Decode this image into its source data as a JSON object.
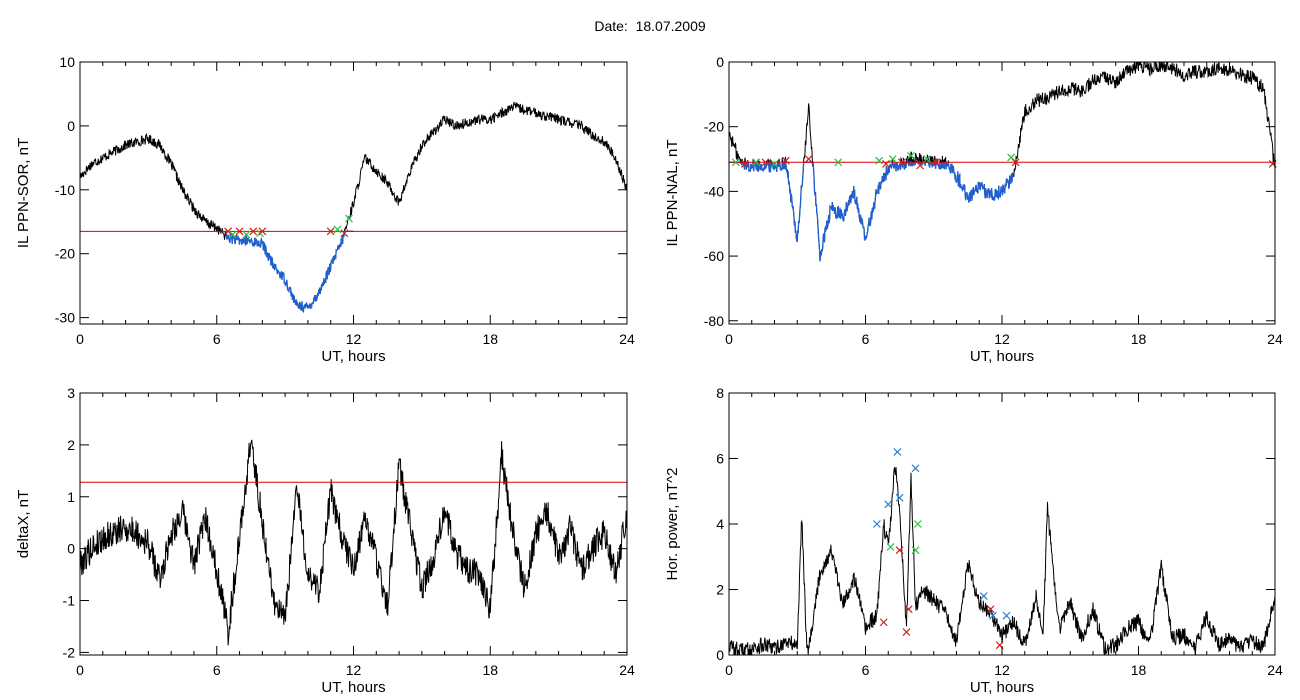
{
  "header": {
    "date_label": "Date:",
    "date_value": "18.07.2009"
  },
  "colors": {
    "axis": "#000000",
    "trace": "#000000",
    "selected_trace": "#1f5fcf",
    "threshold": "#dd0000",
    "marker_green": "#22c33a",
    "marker_red": "#d11b1b",
    "marker_blue": "#2e7fd6"
  },
  "chart_data": [
    {
      "id": "sor",
      "type": "line",
      "xlabel": "UT, hours",
      "ylabel": "IL PPN-SOR, nT",
      "xlim": [
        0,
        24
      ],
      "ylim": [
        -31,
        10
      ],
      "xticks": [
        0,
        6,
        12,
        18,
        24
      ],
      "yticks": [
        -30,
        -20,
        -10,
        0,
        10
      ],
      "threshold": -16.5,
      "x": [
        0,
        0.5,
        1,
        1.5,
        2,
        2.5,
        3,
        3.5,
        4,
        4.5,
        5,
        5.5,
        6,
        6.5,
        7,
        7.5,
        8,
        8.5,
        9,
        9.5,
        10,
        10.5,
        11,
        11.5,
        12,
        12.5,
        13,
        13.5,
        14,
        14.5,
        15,
        15.5,
        16,
        16.5,
        17,
        17.5,
        18,
        18.5,
        19,
        19.5,
        20,
        20.5,
        21,
        21.5,
        22,
        22.5,
        23,
        23.5,
        24
      ],
      "y": [
        -8,
        -6,
        -5,
        -4,
        -3,
        -2.5,
        -2,
        -3,
        -6,
        -10,
        -13,
        -15,
        -16,
        -17.5,
        -18,
        -18,
        -18.5,
        -22,
        -24,
        -28,
        -28.5,
        -26,
        -22,
        -18,
        -12,
        -5,
        -7,
        -9,
        -12,
        -7,
        -3,
        -1,
        1,
        0,
        0.5,
        1,
        1,
        2,
        3,
        2.5,
        2,
        1.5,
        1,
        0.5,
        0,
        -1.5,
        -2.5,
        -5,
        -10
      ],
      "selected_x_range": [
        6.4,
        12
      ],
      "markers": [
        {
          "x": 6.5,
          "y": -16.5,
          "color": "red"
        },
        {
          "x": 6.7,
          "y": -17,
          "color": "green"
        },
        {
          "x": 7.0,
          "y": -16.5,
          "color": "red"
        },
        {
          "x": 7.3,
          "y": -17,
          "color": "green"
        },
        {
          "x": 7.6,
          "y": -16.5,
          "color": "red"
        },
        {
          "x": 7.9,
          "y": -16.8,
          "color": "green"
        },
        {
          "x": 8.0,
          "y": -16.5,
          "color": "red"
        },
        {
          "x": 11.0,
          "y": -16.5,
          "color": "red"
        },
        {
          "x": 11.3,
          "y": -16.2,
          "color": "green"
        },
        {
          "x": 11.6,
          "y": -16.8,
          "color": "red"
        },
        {
          "x": 11.8,
          "y": -14.5,
          "color": "green"
        }
      ]
    },
    {
      "id": "nal",
      "type": "line",
      "xlabel": "UT, hours",
      "ylabel": "IL PPN-NAL, nT",
      "xlim": [
        0,
        24
      ],
      "ylim": [
        -81,
        0
      ],
      "xticks": [
        0,
        6,
        12,
        18,
        24
      ],
      "yticks": [
        -80,
        -60,
        -40,
        -20,
        0
      ],
      "threshold": -31,
      "x": [
        0,
        0.5,
        1,
        1.5,
        2,
        2.5,
        3,
        3.5,
        4,
        4.5,
        5,
        5.5,
        6,
        6.5,
        7,
        7.5,
        8,
        8.5,
        9,
        9.5,
        10,
        10.5,
        11,
        11.5,
        12,
        12.5,
        13,
        13.5,
        14,
        14.5,
        15,
        15.5,
        16,
        16.5,
        17,
        17.5,
        18,
        18.5,
        19,
        19.5,
        20,
        20.5,
        21,
        21.5,
        22,
        22.5,
        23,
        23.5,
        24
      ],
      "y": [
        -22,
        -31,
        -32,
        -32,
        -32,
        -31,
        -55,
        -14,
        -60,
        -45,
        -48,
        -40,
        -55,
        -40,
        -33,
        -32,
        -30,
        -30,
        -31,
        -31,
        -35,
        -42,
        -39,
        -41,
        -40,
        -35,
        -15,
        -12,
        -11,
        -9,
        -8,
        -9,
        -6,
        -5,
        -6,
        -3,
        -1,
        -2,
        -1,
        -2,
        -4,
        -3,
        -3,
        -2,
        -3,
        -4,
        -5,
        -8,
        -33
      ],
      "selected_x_range": [
        0,
        12.5
      ],
      "markers": [
        {
          "x": 0.3,
          "y": -31,
          "color": "green"
        },
        {
          "x": 0.7,
          "y": -31.5,
          "color": "red"
        },
        {
          "x": 1.2,
          "y": -31,
          "color": "green"
        },
        {
          "x": 1.6,
          "y": -31,
          "color": "red"
        },
        {
          "x": 2.0,
          "y": -31.5,
          "color": "green"
        },
        {
          "x": 2.5,
          "y": -30.5,
          "color": "red"
        },
        {
          "x": 3.5,
          "y": -30,
          "color": "red"
        },
        {
          "x": 4.8,
          "y": -31,
          "color": "green"
        },
        {
          "x": 6.6,
          "y": -30.5,
          "color": "green"
        },
        {
          "x": 6.9,
          "y": -31.5,
          "color": "red"
        },
        {
          "x": 7.2,
          "y": -30,
          "color": "green"
        },
        {
          "x": 7.6,
          "y": -31,
          "color": "red"
        },
        {
          "x": 8.0,
          "y": -29,
          "color": "green"
        },
        {
          "x": 8.4,
          "y": -32,
          "color": "red"
        },
        {
          "x": 8.7,
          "y": -30,
          "color": "green"
        },
        {
          "x": 9.1,
          "y": -31,
          "color": "red"
        },
        {
          "x": 12.4,
          "y": -29.5,
          "color": "green"
        },
        {
          "x": 12.6,
          "y": -31,
          "color": "red"
        },
        {
          "x": 23.9,
          "y": -31.5,
          "color": "red"
        }
      ]
    },
    {
      "id": "deltax",
      "type": "line",
      "xlabel": "UT, hours",
      "ylabel": "deltaX, nT",
      "xlim": [
        0,
        24
      ],
      "ylim": [
        -2.05,
        3
      ],
      "xticks": [
        0,
        6,
        12,
        18,
        24
      ],
      "yticks": [
        -2,
        -1,
        0,
        1,
        2,
        3
      ],
      "threshold": 1.28,
      "x": [
        0,
        0.5,
        1,
        1.5,
        2,
        2.5,
        3,
        3.5,
        4,
        4.5,
        5,
        5.5,
        6,
        6.5,
        7,
        7.5,
        8,
        8.5,
        9,
        9.5,
        10,
        10.5,
        11,
        11.5,
        12,
        12.5,
        13,
        13.5,
        14,
        14.5,
        15,
        15.5,
        16,
        16.5,
        17,
        17.5,
        18,
        18.5,
        19,
        19.5,
        20,
        20.5,
        21,
        21.5,
        22,
        22.5,
        23,
        23.5,
        24
      ],
      "y": [
        -0.3,
        0,
        0.2,
        0.3,
        0.4,
        0.3,
        0.1,
        -0.6,
        0.3,
        0.7,
        -0.3,
        0.6,
        -0.4,
        -1.6,
        0.2,
        2.1,
        0.5,
        -1,
        -1.4,
        1.2,
        -0.5,
        -0.8,
        1.1,
        0.2,
        -0.4,
        0.6,
        -0.2,
        -1.1,
        1.6,
        0.4,
        -0.8,
        -0.2,
        0.8,
        -0.1,
        -0.4,
        -0.5,
        -1.2,
        1.8,
        0.3,
        -0.8,
        0.3,
        0.7,
        -0.2,
        0.4,
        -0.4,
        0,
        0.3,
        -0.5,
        0.7
      ],
      "markers": []
    },
    {
      "id": "power",
      "type": "line",
      "xlabel": "UT, hours",
      "ylabel": "Hor. power, nT^2",
      "xlim": [
        0,
        24
      ],
      "ylim": [
        0,
        8
      ],
      "xticks": [
        0,
        6,
        12,
        18,
        24
      ],
      "yticks": [
        0,
        2,
        4,
        6,
        8
      ],
      "x": [
        0,
        0.5,
        1,
        1.5,
        2,
        2.5,
        3,
        3.2,
        3.4,
        3.5,
        4,
        4.5,
        5,
        5.5,
        6,
        6.5,
        6.8,
        7,
        7.3,
        7.5,
        7.8,
        8,
        8.2,
        8.5,
        9,
        9.5,
        10,
        10.5,
        11,
        11.5,
        12,
        12.5,
        13,
        13.5,
        13.8,
        14,
        14.5,
        15,
        15.5,
        16,
        16.5,
        17,
        17.5,
        18,
        18.5,
        19,
        19.5,
        20,
        20.5,
        21,
        21.5,
        22,
        22.5,
        23,
        23.5,
        24
      ],
      "y": [
        0.3,
        0.1,
        0.2,
        0.3,
        0.2,
        0.4,
        0.3,
        4.3,
        0.5,
        0.2,
        2.5,
        3.2,
        1.5,
        2.4,
        0.8,
        1.2,
        4.0,
        3.3,
        5.8,
        4.5,
        0.8,
        5.4,
        1.5,
        2.0,
        1.7,
        1.3,
        0.4,
        2.8,
        1.6,
        1.3,
        0.6,
        1.0,
        0.3,
        1.8,
        0.5,
        4.5,
        0.8,
        1.6,
        0.5,
        1.4,
        0.2,
        0.3,
        0.8,
        1.0,
        0.3,
        2.7,
        0.5,
        0.6,
        0.2,
        1.2,
        0.3,
        0.5,
        0.2,
        0.4,
        0.3,
        1.8
      ],
      "markers": [
        {
          "x": 6.5,
          "y": 4.0,
          "color": "blue"
        },
        {
          "x": 6.8,
          "y": 1.0,
          "color": "red"
        },
        {
          "x": 7.0,
          "y": 4.6,
          "color": "blue"
        },
        {
          "x": 7.1,
          "y": 3.3,
          "color": "green"
        },
        {
          "x": 7.4,
          "y": 6.2,
          "color": "blue"
        },
        {
          "x": 7.5,
          "y": 4.8,
          "color": "blue"
        },
        {
          "x": 7.5,
          "y": 3.2,
          "color": "red"
        },
        {
          "x": 7.9,
          "y": 1.4,
          "color": "red"
        },
        {
          "x": 7.8,
          "y": 0.7,
          "color": "red"
        },
        {
          "x": 8.2,
          "y": 5.7,
          "color": "blue"
        },
        {
          "x": 8.3,
          "y": 4.0,
          "color": "green"
        },
        {
          "x": 8.2,
          "y": 3.2,
          "color": "green"
        },
        {
          "x": 11.2,
          "y": 1.8,
          "color": "blue"
        },
        {
          "x": 11.5,
          "y": 1.4,
          "color": "red"
        },
        {
          "x": 11.6,
          "y": 1.2,
          "color": "blue"
        },
        {
          "x": 12.2,
          "y": 1.2,
          "color": "blue"
        },
        {
          "x": 11.9,
          "y": 0.3,
          "color": "red"
        }
      ]
    }
  ]
}
